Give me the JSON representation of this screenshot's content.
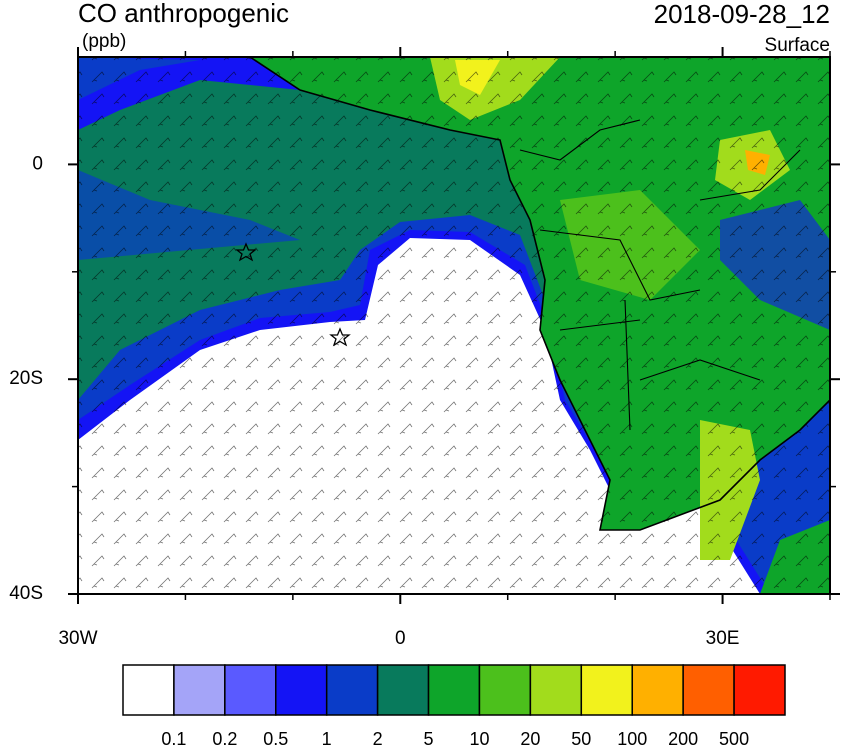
{
  "title": "CO anthropogenic",
  "units": "(ppb)",
  "date": "2018-09-28_12",
  "level": "Surface",
  "map": {
    "xlim": [
      -30,
      40
    ],
    "ylim": [
      -40,
      10
    ],
    "xticks": [
      {
        "value": -30,
        "label": "30W"
      },
      0,
      {
        "value": 30,
        "label": "30E"
      }
    ],
    "yticks": [
      0,
      {
        "value": -20,
        "label": "20S"
      },
      {
        "value": -40,
        "label": "40S"
      }
    ],
    "minor_xticks": [
      -20,
      -10,
      10,
      20,
      40
    ],
    "minor_yticks": [
      -30,
      -10
    ]
  },
  "colorbar": {
    "levels": [
      0.1,
      0.2,
      0.5,
      1,
      2,
      5,
      10,
      20,
      50,
      100,
      200,
      500
    ],
    "colors": [
      "#ffffff",
      "#a4a4f8",
      "#5a5aff",
      "#1414f5",
      "#0a3cc8",
      "#087a5c",
      "#0ea52a",
      "#4cc01c",
      "#a2dc1c",
      "#f2f21c",
      "#ffb000",
      "#ff5f00",
      "#ff1a00"
    ]
  }
}
